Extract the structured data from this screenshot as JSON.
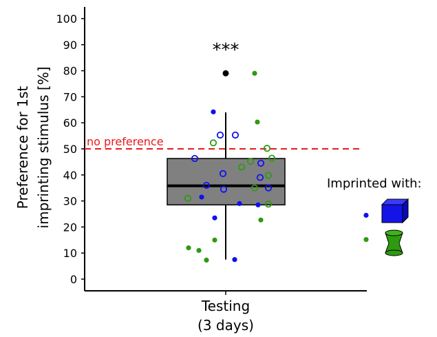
{
  "chart_data": {
    "type": "box",
    "categories": [
      "Testing\n(3 days)"
    ],
    "xlabel_lines": [
      "Testing",
      "(3 days)"
    ],
    "ylabel_lines": [
      "Preference for 1st",
      "imprinting stimulus [%]"
    ],
    "ylim": [
      0,
      100
    ],
    "yticks": [
      0,
      10,
      20,
      30,
      40,
      50,
      60,
      70,
      80,
      90,
      100
    ],
    "grid": false,
    "box": {
      "q1": 28.5,
      "median": 35.8,
      "q3": 46.3,
      "whisker_low": 7.5,
      "whisker_high": 64,
      "outliers": [
        79
      ],
      "fill": "#808080"
    },
    "reference_line": {
      "value": 50,
      "label": "no preference",
      "color": "#e8191c"
    },
    "significance": "***",
    "series": [
      {
        "name": "Imprinted with cube (blue)",
        "color": "#1010f0",
        "filled_points": [
          64.2,
          31.5,
          23.5,
          7.5,
          29,
          28.5
        ],
        "open_points": [
          55.3,
          55.3,
          46.3,
          40.5,
          36,
          34.5,
          44.5,
          39,
          35
        ]
      },
      {
        "name": "Imprinted with cylinder (green)",
        "color": "#2e9a10",
        "filled_points": [
          79,
          60.3,
          22.7,
          15,
          12,
          11,
          7.3
        ],
        "open_points": [
          52.3,
          50.2,
          46.4,
          45.2,
          43,
          39.8,
          35,
          31,
          28.8
        ]
      }
    ],
    "legend": {
      "title": "Imprinted with:",
      "placement": "right",
      "items": [
        {
          "symbol": "blue-cube",
          "dot_color": "#1010f0",
          "dot_value": 24.5
        },
        {
          "symbol": "green-cylinder",
          "dot_color": "#2e9a10",
          "dot_value": 15.2
        }
      ]
    }
  }
}
